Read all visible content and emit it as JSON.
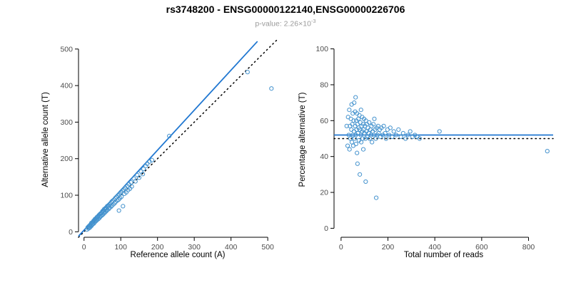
{
  "title": "rs3748200 - ENSG00000122140,ENSG00000226706",
  "subtitle": {
    "text": "p-value: 2.26×10",
    "exponent": "-3"
  },
  "colors": {
    "points": "#4593CE",
    "fit_line": "#2077D1",
    "identity_line": "#000000",
    "axis": "#000000",
    "tick_label": "#4d4d4d",
    "subtitle": "#9a9a9a"
  },
  "chart_data": [
    {
      "type": "scatter",
      "marker": "open-circle",
      "xlabel": "Reference allele count (A)",
      "ylabel": "Alternative allele count (T)",
      "xlim": [
        -15,
        525
      ],
      "ylim": [
        -15,
        525
      ],
      "xticks": [
        0,
        100,
        200,
        300,
        400,
        500
      ],
      "yticks": [
        0,
        100,
        200,
        300,
        400,
        500
      ],
      "lines": [
        {
          "type": "identity",
          "style": "dotted",
          "color": "#000000",
          "points": [
            [
              -15,
              -15
            ],
            [
              525,
              525
            ]
          ]
        },
        {
          "type": "fit",
          "style": "solid",
          "color": "#2077D1",
          "points": [
            [
              -15,
              -12
            ],
            [
              472,
              521
            ]
          ]
        }
      ],
      "points": [
        [
          8,
          6
        ],
        [
          10,
          12
        ],
        [
          12,
          9
        ],
        [
          13,
          15
        ],
        [
          15,
          11
        ],
        [
          16,
          18
        ],
        [
          17,
          13
        ],
        [
          18,
          20
        ],
        [
          20,
          16
        ],
        [
          20,
          24
        ],
        [
          22,
          19
        ],
        [
          23,
          26
        ],
        [
          24,
          21
        ],
        [
          25,
          28
        ],
        [
          26,
          30
        ],
        [
          27,
          23
        ],
        [
          28,
          32
        ],
        [
          30,
          27
        ],
        [
          30,
          35
        ],
        [
          32,
          29
        ],
        [
          33,
          37
        ],
        [
          34,
          31
        ],
        [
          35,
          40
        ],
        [
          36,
          33
        ],
        [
          38,
          42
        ],
        [
          39,
          35
        ],
        [
          40,
          45
        ],
        [
          42,
          38
        ],
        [
          43,
          48
        ],
        [
          44,
          41
        ],
        [
          45,
          50
        ],
        [
          46,
          43
        ],
        [
          48,
          52
        ],
        [
          49,
          45
        ],
        [
          50,
          56
        ],
        [
          51,
          47
        ],
        [
          52,
          58
        ],
        [
          54,
          50
        ],
        [
          55,
          62
        ],
        [
          56,
          52
        ],
        [
          58,
          64
        ],
        [
          59,
          55
        ],
        [
          60,
          66
        ],
        [
          62,
          58
        ],
        [
          63,
          70
        ],
        [
          64,
          60
        ],
        [
          66,
          72
        ],
        [
          68,
          63
        ],
        [
          69,
          75
        ],
        [
          70,
          66
        ],
        [
          72,
          78
        ],
        [
          74,
          69
        ],
        [
          75,
          82
        ],
        [
          76,
          72
        ],
        [
          78,
          85
        ],
        [
          80,
          75
        ],
        [
          82,
          88
        ],
        [
          84,
          79
        ],
        [
          85,
          92
        ],
        [
          86,
          82
        ],
        [
          88,
          95
        ],
        [
          90,
          85
        ],
        [
          92,
          99
        ],
        [
          94,
          88
        ],
        [
          95,
          58
        ],
        [
          96,
          103
        ],
        [
          98,
          92
        ],
        [
          100,
          108
        ],
        [
          102,
          96
        ],
        [
          105,
          112
        ],
        [
          106,
          70
        ],
        [
          108,
          116
        ],
        [
          110,
          104
        ],
        [
          112,
          120
        ],
        [
          115,
          108
        ],
        [
          118,
          125
        ],
        [
          120,
          114
        ],
        [
          122,
          130
        ],
        [
          125,
          118
        ],
        [
          128,
          135
        ],
        [
          130,
          124
        ],
        [
          135,
          146
        ],
        [
          140,
          138
        ],
        [
          145,
          155
        ],
        [
          150,
          148
        ],
        [
          155,
          165
        ],
        [
          160,
          158
        ],
        [
          162,
          172
        ],
        [
          168,
          180
        ],
        [
          172,
          186
        ],
        [
          178,
          192
        ],
        [
          185,
          196
        ],
        [
          232,
          262
        ],
        [
          445,
          437
        ],
        [
          510,
          392
        ]
      ]
    },
    {
      "type": "scatter",
      "marker": "open-circle",
      "xlabel": "Total number of reads",
      "ylabel": "Percentage alternative (T)",
      "xlim": [
        -30,
        905
      ],
      "ylim": [
        -5,
        105
      ],
      "xticks": [
        0,
        200,
        400,
        600,
        800
      ],
      "yticks": [
        0,
        20,
        40,
        60,
        80,
        100
      ],
      "lines": [
        {
          "type": "identity",
          "style": "dotted",
          "color": "#000000",
          "points": [
            [
              -30,
              50
            ],
            [
              905,
              50
            ]
          ]
        },
        {
          "type": "fit",
          "style": "solid",
          "color": "#2077D1",
          "points": [
            [
              -30,
              52
            ],
            [
              905,
              52
            ]
          ]
        }
      ],
      "points": [
        [
          24,
          57
        ],
        [
          28,
          46
        ],
        [
          30,
          62
        ],
        [
          33,
          52
        ],
        [
          35,
          66
        ],
        [
          36,
          44
        ],
        [
          38,
          57
        ],
        [
          40,
          50
        ],
        [
          42,
          61
        ],
        [
          44,
          55
        ],
        [
          45,
          69
        ],
        [
          46,
          48
        ],
        [
          48,
          58
        ],
        [
          50,
          52
        ],
        [
          50,
          64
        ],
        [
          52,
          46
        ],
        [
          54,
          60
        ],
        [
          55,
          54
        ],
        [
          56,
          70
        ],
        [
          58,
          50
        ],
        [
          60,
          57
        ],
        [
          60,
          65
        ],
        [
          62,
          73
        ],
        [
          63,
          52
        ],
        [
          64,
          47
        ],
        [
          65,
          60
        ],
        [
          66,
          55
        ],
        [
          68,
          64
        ],
        [
          68,
          42
        ],
        [
          70,
          58
        ],
        [
          70,
          36
        ],
        [
          72,
          53
        ],
        [
          74,
          61
        ],
        [
          75,
          56
        ],
        [
          76,
          49
        ],
        [
          78,
          63
        ],
        [
          80,
          55
        ],
        [
          80,
          30
        ],
        [
          82,
          59
        ],
        [
          84,
          52
        ],
        [
          85,
          66
        ],
        [
          86,
          48
        ],
        [
          88,
          57
        ],
        [
          90,
          54
        ],
        [
          90,
          62
        ],
        [
          92,
          50
        ],
        [
          94,
          58
        ],
        [
          95,
          44
        ],
        [
          96,
          55
        ],
        [
          98,
          61
        ],
        [
          100,
          53
        ],
        [
          102,
          57
        ],
        [
          104,
          50
        ],
        [
          105,
          26
        ],
        [
          106,
          60
        ],
        [
          108,
          54
        ],
        [
          110,
          58
        ],
        [
          112,
          51
        ],
        [
          115,
          56
        ],
        [
          118,
          53
        ],
        [
          120,
          59
        ],
        [
          122,
          50
        ],
        [
          125,
          55
        ],
        [
          128,
          52
        ],
        [
          130,
          57
        ],
        [
          132,
          48
        ],
        [
          135,
          54
        ],
        [
          138,
          58
        ],
        [
          140,
          52
        ],
        [
          142,
          61
        ],
        [
          145,
          55
        ],
        [
          148,
          50
        ],
        [
          150,
          17
        ],
        [
          152,
          56
        ],
        [
          155,
          52
        ],
        [
          158,
          57
        ],
        [
          160,
          53
        ],
        [
          165,
          55
        ],
        [
          168,
          51
        ],
        [
          172,
          56
        ],
        [
          178,
          52
        ],
        [
          182,
          57
        ],
        [
          188,
          53
        ],
        [
          192,
          50
        ],
        [
          198,
          55
        ],
        [
          205,
          52
        ],
        [
          210,
          56
        ],
        [
          218,
          51
        ],
        [
          225,
          54
        ],
        [
          235,
          52
        ],
        [
          245,
          55
        ],
        [
          255,
          51
        ],
        [
          265,
          53
        ],
        [
          275,
          50
        ],
        [
          285,
          52
        ],
        [
          295,
          54
        ],
        [
          305,
          51
        ],
        [
          315,
          52
        ],
        [
          325,
          51
        ],
        [
          335,
          50
        ],
        [
          420,
          54
        ],
        [
          880,
          43
        ]
      ]
    }
  ]
}
